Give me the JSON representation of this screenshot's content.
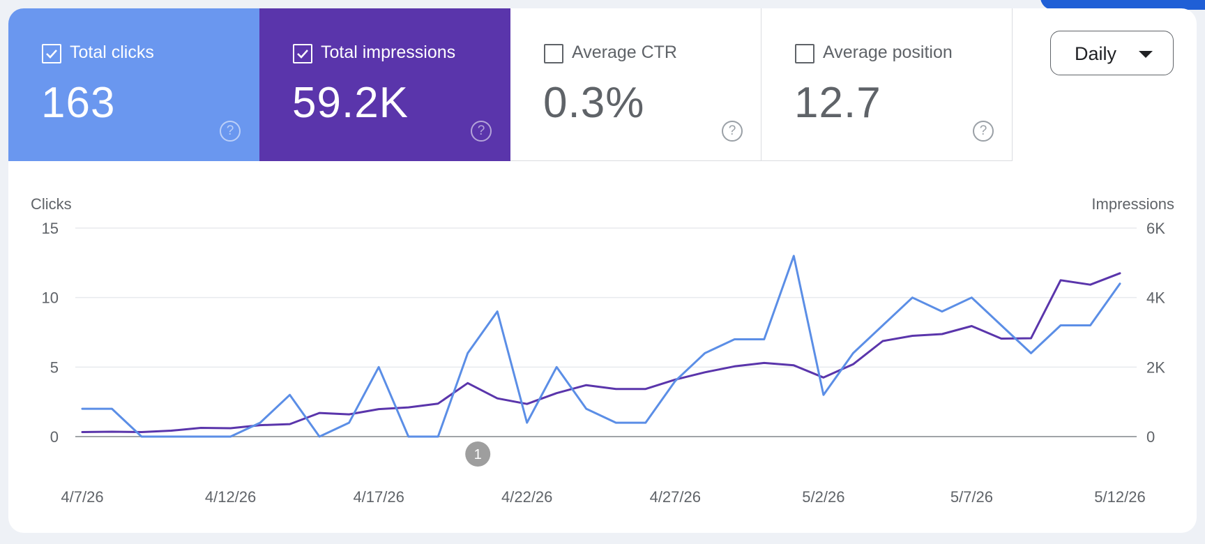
{
  "metrics": [
    {
      "label": "Total clicks",
      "value": "163",
      "checked": true,
      "color": "#6a97ef"
    },
    {
      "label": "Total impressions",
      "value": "59.2K",
      "checked": true,
      "color": "#5a35ab"
    },
    {
      "label": "Average CTR",
      "value": "0.3%",
      "checked": false,
      "color": "#ffffff"
    },
    {
      "label": "Average position",
      "value": "12.7",
      "checked": false,
      "color": "#ffffff"
    }
  ],
  "help_glyph": "?",
  "period_select": {
    "selected": "Daily"
  },
  "chart_data": {
    "type": "line",
    "left_axis_label": "Clicks",
    "right_axis_label": "Impressions",
    "left_ticks": [
      "15",
      "10",
      "5",
      "0"
    ],
    "left_ylim": [
      0,
      15
    ],
    "right_ticks": [
      "6K",
      "4K",
      "2K",
      "0"
    ],
    "right_ylim": [
      0,
      6000
    ],
    "x_tick_labels": [
      "4/7/26",
      "4/12/26",
      "4/17/26",
      "4/22/26",
      "4/27/26",
      "5/2/26",
      "5/7/26",
      "5/12/26"
    ],
    "x": [
      "4/7/26",
      "4/8/26",
      "4/9/26",
      "4/10/26",
      "4/11/26",
      "4/12/26",
      "4/13/26",
      "4/14/26",
      "4/15/26",
      "4/16/26",
      "4/17/26",
      "4/18/26",
      "4/19/26",
      "4/20/26",
      "4/21/26",
      "4/22/26",
      "4/23/26",
      "4/24/26",
      "4/25/26",
      "4/26/26",
      "4/27/26",
      "4/28/26",
      "4/29/26",
      "4/30/26",
      "5/1/26",
      "5/2/26",
      "5/3/26",
      "5/4/26",
      "5/5/26",
      "5/6/26",
      "5/7/26",
      "5/8/26",
      "5/9/26",
      "5/10/26",
      "5/11/26",
      "5/12/26"
    ],
    "grid": true,
    "series": [
      {
        "name": "Clicks",
        "axis": "left",
        "color": "#5b8ee6",
        "values": [
          2,
          2,
          0,
          0,
          0,
          0,
          1,
          3,
          0,
          1,
          5,
          0,
          0,
          6,
          9,
          1,
          5,
          2,
          1,
          1,
          4,
          6,
          7,
          7,
          13,
          3,
          6,
          8,
          10,
          9,
          10,
          8,
          6,
          8,
          8,
          11
        ]
      },
      {
        "name": "Impressions",
        "axis": "right",
        "color": "#5a35ab",
        "values": [
          130,
          140,
          130,
          170,
          250,
          240,
          330,
          360,
          680,
          640,
          790,
          840,
          950,
          1540,
          1100,
          940,
          1250,
          1480,
          1370,
          1370,
          1640,
          1850,
          2020,
          2120,
          2050,
          1700,
          2080,
          2750,
          2900,
          2950,
          3180,
          2820,
          2830,
          4500,
          4370,
          4700
        ]
      }
    ],
    "annotations": [
      {
        "label": "1",
        "x": "4/21/26"
      }
    ]
  }
}
